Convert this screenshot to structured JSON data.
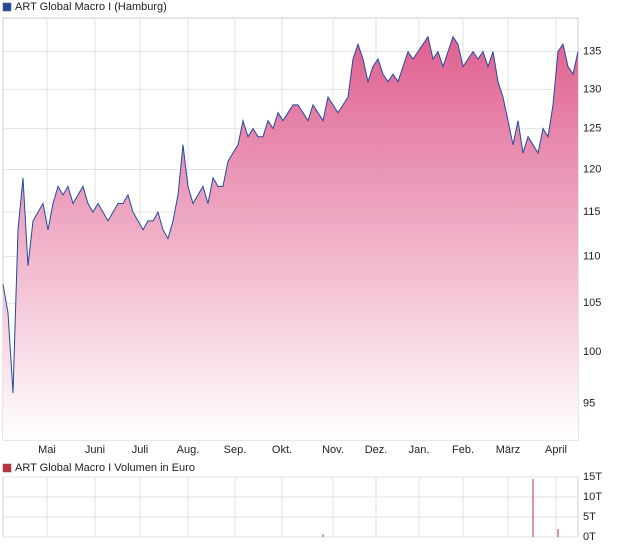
{
  "chart_data": [
    {
      "type": "area",
      "series": [
        {
          "name": "ART Global Macro I (Hamburg)",
          "color": "#1f4ba0",
          "fill_color": "#e06090",
          "values": [
            107,
            104,
            96,
            113,
            119,
            109,
            114,
            115,
            116,
            113,
            116,
            118,
            117,
            118,
            116,
            117,
            118,
            116,
            115,
            116,
            115,
            114,
            115,
            116,
            116,
            117,
            115,
            114,
            113,
            114,
            114,
            115,
            113,
            112,
            114,
            117,
            123,
            118,
            116,
            117,
            118,
            116,
            119,
            118,
            118,
            121,
            122,
            123,
            126,
            124,
            125,
            124,
            124,
            126,
            125,
            127,
            126,
            127,
            128,
            128,
            127,
            126,
            128,
            127,
            126,
            129,
            128,
            127,
            128,
            129,
            134,
            136,
            134,
            131,
            133,
            134,
            132,
            131,
            132,
            131,
            133,
            135,
            134,
            135,
            136,
            137,
            134,
            135,
            133,
            135,
            137,
            136,
            133,
            134,
            135,
            134,
            135,
            133,
            135,
            131,
            129,
            126,
            123,
            126,
            122,
            124,
            123,
            122,
            125,
            124,
            128,
            135,
            136,
            133,
            132,
            135
          ]
        }
      ],
      "xlim": [
        0,
        115
      ],
      "xticks": [
        {
          "value": 8.8,
          "label": "Mai"
        },
        {
          "value": 18.4,
          "label": "Juni"
        },
        {
          "value": 27.4,
          "label": "Juli"
        },
        {
          "value": 37,
          "label": "Aug."
        },
        {
          "value": 46.4,
          "label": "Sep."
        },
        {
          "value": 55.8,
          "label": "Okt."
        },
        {
          "value": 66,
          "label": "Nov."
        },
        {
          "value": 74.6,
          "label": "Dez."
        },
        {
          "value": 83.2,
          "label": "Jan."
        },
        {
          "value": 92,
          "label": "Feb."
        },
        {
          "value": 101,
          "label": "März"
        },
        {
          "value": 110.6,
          "label": "April"
        }
      ],
      "ylim": [
        91.6,
        139.6
      ],
      "yticks": [
        95,
        100,
        105,
        110,
        115,
        120,
        125,
        130,
        135
      ],
      "log_scale": true,
      "grid": true
    },
    {
      "type": "bar",
      "series": [
        {
          "name": "ART Global Macro I Volumen in Euro",
          "color": "#c03040",
          "x": [
            64,
            106,
            111
          ],
          "values": [
            700,
            14500,
            2000
          ]
        }
      ],
      "xlim": [
        0,
        115
      ],
      "ylim": [
        0,
        15000
      ],
      "yticks": [
        {
          "value": 0,
          "label": "0T"
        },
        {
          "value": 5000,
          "label": "5T"
        },
        {
          "value": 10000,
          "label": "10T"
        },
        {
          "value": 15000,
          "label": "15T"
        }
      ],
      "grid": true
    }
  ]
}
